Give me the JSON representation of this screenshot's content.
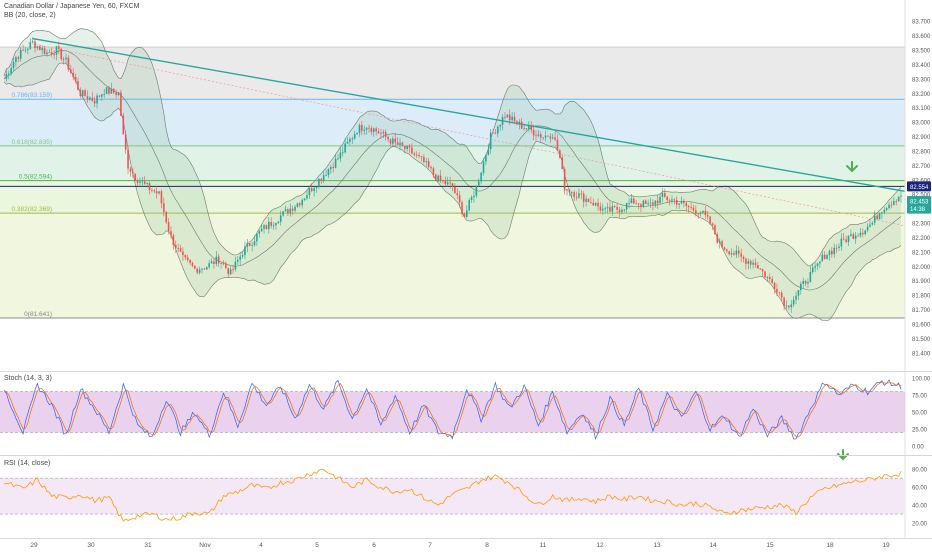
{
  "header": {
    "symbol": "Canadian Dollar / Japanese Yen, 60, FXCM",
    "bb_label": "BB (20, close, 2)"
  },
  "stoch_label": "Stoch (14, 3, 3)",
  "rsi_label": "RSI (14, close)",
  "colors": {
    "up": "#26a69a",
    "down": "#ef5350",
    "trendline": "#26a69a",
    "bb": "#6b7a6b",
    "hline": "#1a237e",
    "stoch_k": "#2962ff",
    "stoch_d": "#ef6c00",
    "rsi": "#ff9800",
    "stoch_band": "#e1bee7",
    "rsi_band": "#f3e5f5",
    "arrow": "#4caf50"
  },
  "x_axis": {
    "ticks": [
      "29",
      "30",
      "31",
      "Nov",
      "4",
      "5",
      "6",
      "7",
      "8",
      "11",
      "12",
      "13",
      "14",
      "15",
      "18",
      "19"
    ]
  },
  "price_axis": {
    "ticks": [
      "83.700",
      "83.600",
      "83.500",
      "83.400",
      "83.300",
      "83.200",
      "83.100",
      "83.000",
      "82.900",
      "82.800",
      "82.700",
      "82.600",
      "82.500",
      "82.400",
      "82.300",
      "82.200",
      "82.100",
      "82.000",
      "81.900",
      "81.800",
      "81.700",
      "81.600",
      "81.500",
      "81.400"
    ],
    "labels": [
      {
        "text": "82.554",
        "value": 82.554,
        "color": "#1a237e"
      },
      {
        "text": "82.453",
        "value": 82.453,
        "color": "#26a69a"
      },
      {
        "text": "14:38",
        "value": 82.4,
        "color": "#26a69a"
      }
    ]
  },
  "fib_levels": [
    {
      "label": "",
      "value": 83.52,
      "color": "#cfcfcf"
    },
    {
      "label": "0.786(83.159)",
      "value": 83.159,
      "color": "#64b5f6"
    },
    {
      "label": "0.618(82.835)",
      "value": 82.835,
      "color": "#81c784"
    },
    {
      "label": "0.5(82.594)",
      "value": 82.594,
      "color": "#4caf50"
    },
    {
      "label": "0.382(82.369)",
      "value": 82.369,
      "color": "#a5b845"
    },
    {
      "label": "0(81.641)",
      "value": 81.641,
      "color": "#888888"
    }
  ],
  "stoch_axis": {
    "ticks": [
      "100.00",
      "75.00",
      "50.00",
      "25.00",
      "0.00"
    ]
  },
  "rsi_axis": {
    "ticks": [
      "80.00",
      "60.00",
      "40.00",
      "20.00"
    ]
  },
  "chart_data": {
    "type": "candlestick",
    "title": "Canadian Dollar / Japanese Yen, 60, FXCM",
    "ylim": [
      81.35,
      83.75
    ],
    "price_anchors": [
      [
        0,
        83.3
      ],
      [
        5,
        83.45
      ],
      [
        12,
        83.55
      ],
      [
        18,
        83.48
      ],
      [
        22,
        83.5
      ],
      [
        26,
        83.42
      ],
      [
        32,
        83.2
      ],
      [
        38,
        83.15
      ],
      [
        42,
        83.22
      ],
      [
        48,
        83.2
      ],
      [
        50,
        82.9
      ],
      [
        52,
        82.7
      ],
      [
        55,
        82.62
      ],
      [
        60,
        82.55
      ],
      [
        65,
        82.5
      ],
      [
        70,
        82.2
      ],
      [
        75,
        82.05
      ],
      [
        80,
        81.98
      ],
      [
        85,
        82.0
      ],
      [
        90,
        82.05
      ],
      [
        95,
        81.95
      ],
      [
        100,
        82.1
      ],
      [
        108,
        82.25
      ],
      [
        116,
        82.35
      ],
      [
        124,
        82.45
      ],
      [
        132,
        82.6
      ],
      [
        140,
        82.75
      ],
      [
        148,
        82.95
      ],
      [
        152,
        82.98
      ],
      [
        158,
        82.92
      ],
      [
        164,
        82.85
      ],
      [
        170,
        82.8
      ],
      [
        176,
        82.72
      ],
      [
        182,
        82.6
      ],
      [
        188,
        82.55
      ],
      [
        193,
        82.35
      ],
      [
        198,
        82.55
      ],
      [
        204,
        82.9
      ],
      [
        210,
        83.05
      ],
      [
        214,
        83.0
      ],
      [
        220,
        82.95
      ],
      [
        226,
        82.9
      ],
      [
        230,
        82.92
      ],
      [
        233,
        82.75
      ],
      [
        235,
        82.55
      ],
      [
        240,
        82.5
      ],
      [
        246,
        82.45
      ],
      [
        252,
        82.38
      ],
      [
        258,
        82.4
      ],
      [
        264,
        82.45
      ],
      [
        270,
        82.42
      ],
      [
        276,
        82.48
      ],
      [
        282,
        82.45
      ],
      [
        288,
        82.4
      ],
      [
        292,
        82.38
      ],
      [
        296,
        82.3
      ],
      [
        300,
        82.15
      ],
      [
        305,
        82.1
      ],
      [
        310,
        82.05
      ],
      [
        315,
        82.02
      ],
      [
        320,
        81.92
      ],
      [
        324,
        81.85
      ],
      [
        328,
        81.72
      ],
      [
        332,
        81.8
      ],
      [
        336,
        81.9
      ],
      [
        340,
        81.98
      ],
      [
        344,
        82.08
      ],
      [
        348,
        82.12
      ],
      [
        352,
        82.18
      ],
      [
        356,
        82.22
      ],
      [
        360,
        82.25
      ],
      [
        364,
        82.3
      ],
      [
        368,
        82.4
      ],
      [
        372,
        82.45
      ],
      [
        376,
        82.5
      ]
    ],
    "stoch_anchors": [
      [
        0,
        85
      ],
      [
        8,
        20
      ],
      [
        14,
        90
      ],
      [
        20,
        60
      ],
      [
        26,
        15
      ],
      [
        32,
        85
      ],
      [
        38,
        55
      ],
      [
        44,
        20
      ],
      [
        50,
        90
      ],
      [
        56,
        30
      ],
      [
        62,
        12
      ],
      [
        68,
        70
      ],
      [
        74,
        20
      ],
      [
        80,
        50
      ],
      [
        86,
        15
      ],
      [
        92,
        80
      ],
      [
        98,
        30
      ],
      [
        104,
        92
      ],
      [
        110,
        60
      ],
      [
        116,
        88
      ],
      [
        122,
        40
      ],
      [
        128,
        90
      ],
      [
        134,
        55
      ],
      [
        140,
        95
      ],
      [
        146,
        40
      ],
      [
        152,
        85
      ],
      [
        158,
        30
      ],
      [
        164,
        75
      ],
      [
        170,
        20
      ],
      [
        176,
        60
      ],
      [
        182,
        20
      ],
      [
        188,
        15
      ],
      [
        194,
        85
      ],
      [
        200,
        40
      ],
      [
        206,
        90
      ],
      [
        212,
        55
      ],
      [
        218,
        88
      ],
      [
        224,
        30
      ],
      [
        230,
        80
      ],
      [
        236,
        20
      ],
      [
        242,
        50
      ],
      [
        248,
        15
      ],
      [
        254,
        70
      ],
      [
        260,
        30
      ],
      [
        266,
        85
      ],
      [
        272,
        25
      ],
      [
        278,
        75
      ],
      [
        284,
        40
      ],
      [
        290,
        80
      ],
      [
        296,
        25
      ],
      [
        302,
        45
      ],
      [
        308,
        12
      ],
      [
        314,
        55
      ],
      [
        320,
        15
      ],
      [
        326,
        40
      ],
      [
        332,
        10
      ],
      [
        338,
        55
      ],
      [
        344,
        95
      ],
      [
        350,
        75
      ],
      [
        356,
        90
      ],
      [
        362,
        80
      ],
      [
        368,
        95
      ],
      [
        376,
        88
      ]
    ],
    "rsi_anchors": [
      [
        0,
        65
      ],
      [
        8,
        58
      ],
      [
        14,
        68
      ],
      [
        20,
        50
      ],
      [
        26,
        48
      ],
      [
        32,
        52
      ],
      [
        38,
        45
      ],
      [
        44,
        48
      ],
      [
        50,
        22
      ],
      [
        56,
        28
      ],
      [
        62,
        30
      ],
      [
        68,
        24
      ],
      [
        74,
        26
      ],
      [
        80,
        32
      ],
      [
        86,
        30
      ],
      [
        92,
        50
      ],
      [
        98,
        55
      ],
      [
        104,
        62
      ],
      [
        110,
        58
      ],
      [
        116,
        65
      ],
      [
        122,
        68
      ],
      [
        128,
        75
      ],
      [
        134,
        80
      ],
      [
        140,
        70
      ],
      [
        146,
        60
      ],
      [
        152,
        68
      ],
      [
        158,
        60
      ],
      [
        164,
        55
      ],
      [
        170,
        58
      ],
      [
        176,
        48
      ],
      [
        182,
        40
      ],
      [
        188,
        52
      ],
      [
        194,
        58
      ],
      [
        200,
        68
      ],
      [
        206,
        72
      ],
      [
        212,
        65
      ],
      [
        218,
        52
      ],
      [
        224,
        40
      ],
      [
        230,
        50
      ],
      [
        236,
        45
      ],
      [
        242,
        48
      ],
      [
        248,
        44
      ],
      [
        254,
        50
      ],
      [
        260,
        46
      ],
      [
        266,
        50
      ],
      [
        272,
        45
      ],
      [
        278,
        44
      ],
      [
        284,
        40
      ],
      [
        290,
        42
      ],
      [
        296,
        38
      ],
      [
        302,
        30
      ],
      [
        308,
        34
      ],
      [
        314,
        36
      ],
      [
        320,
        38
      ],
      [
        326,
        40
      ],
      [
        332,
        32
      ],
      [
        338,
        48
      ],
      [
        344,
        58
      ],
      [
        350,
        62
      ],
      [
        356,
        66
      ],
      [
        362,
        68
      ],
      [
        368,
        72
      ],
      [
        376,
        75
      ]
    ]
  }
}
